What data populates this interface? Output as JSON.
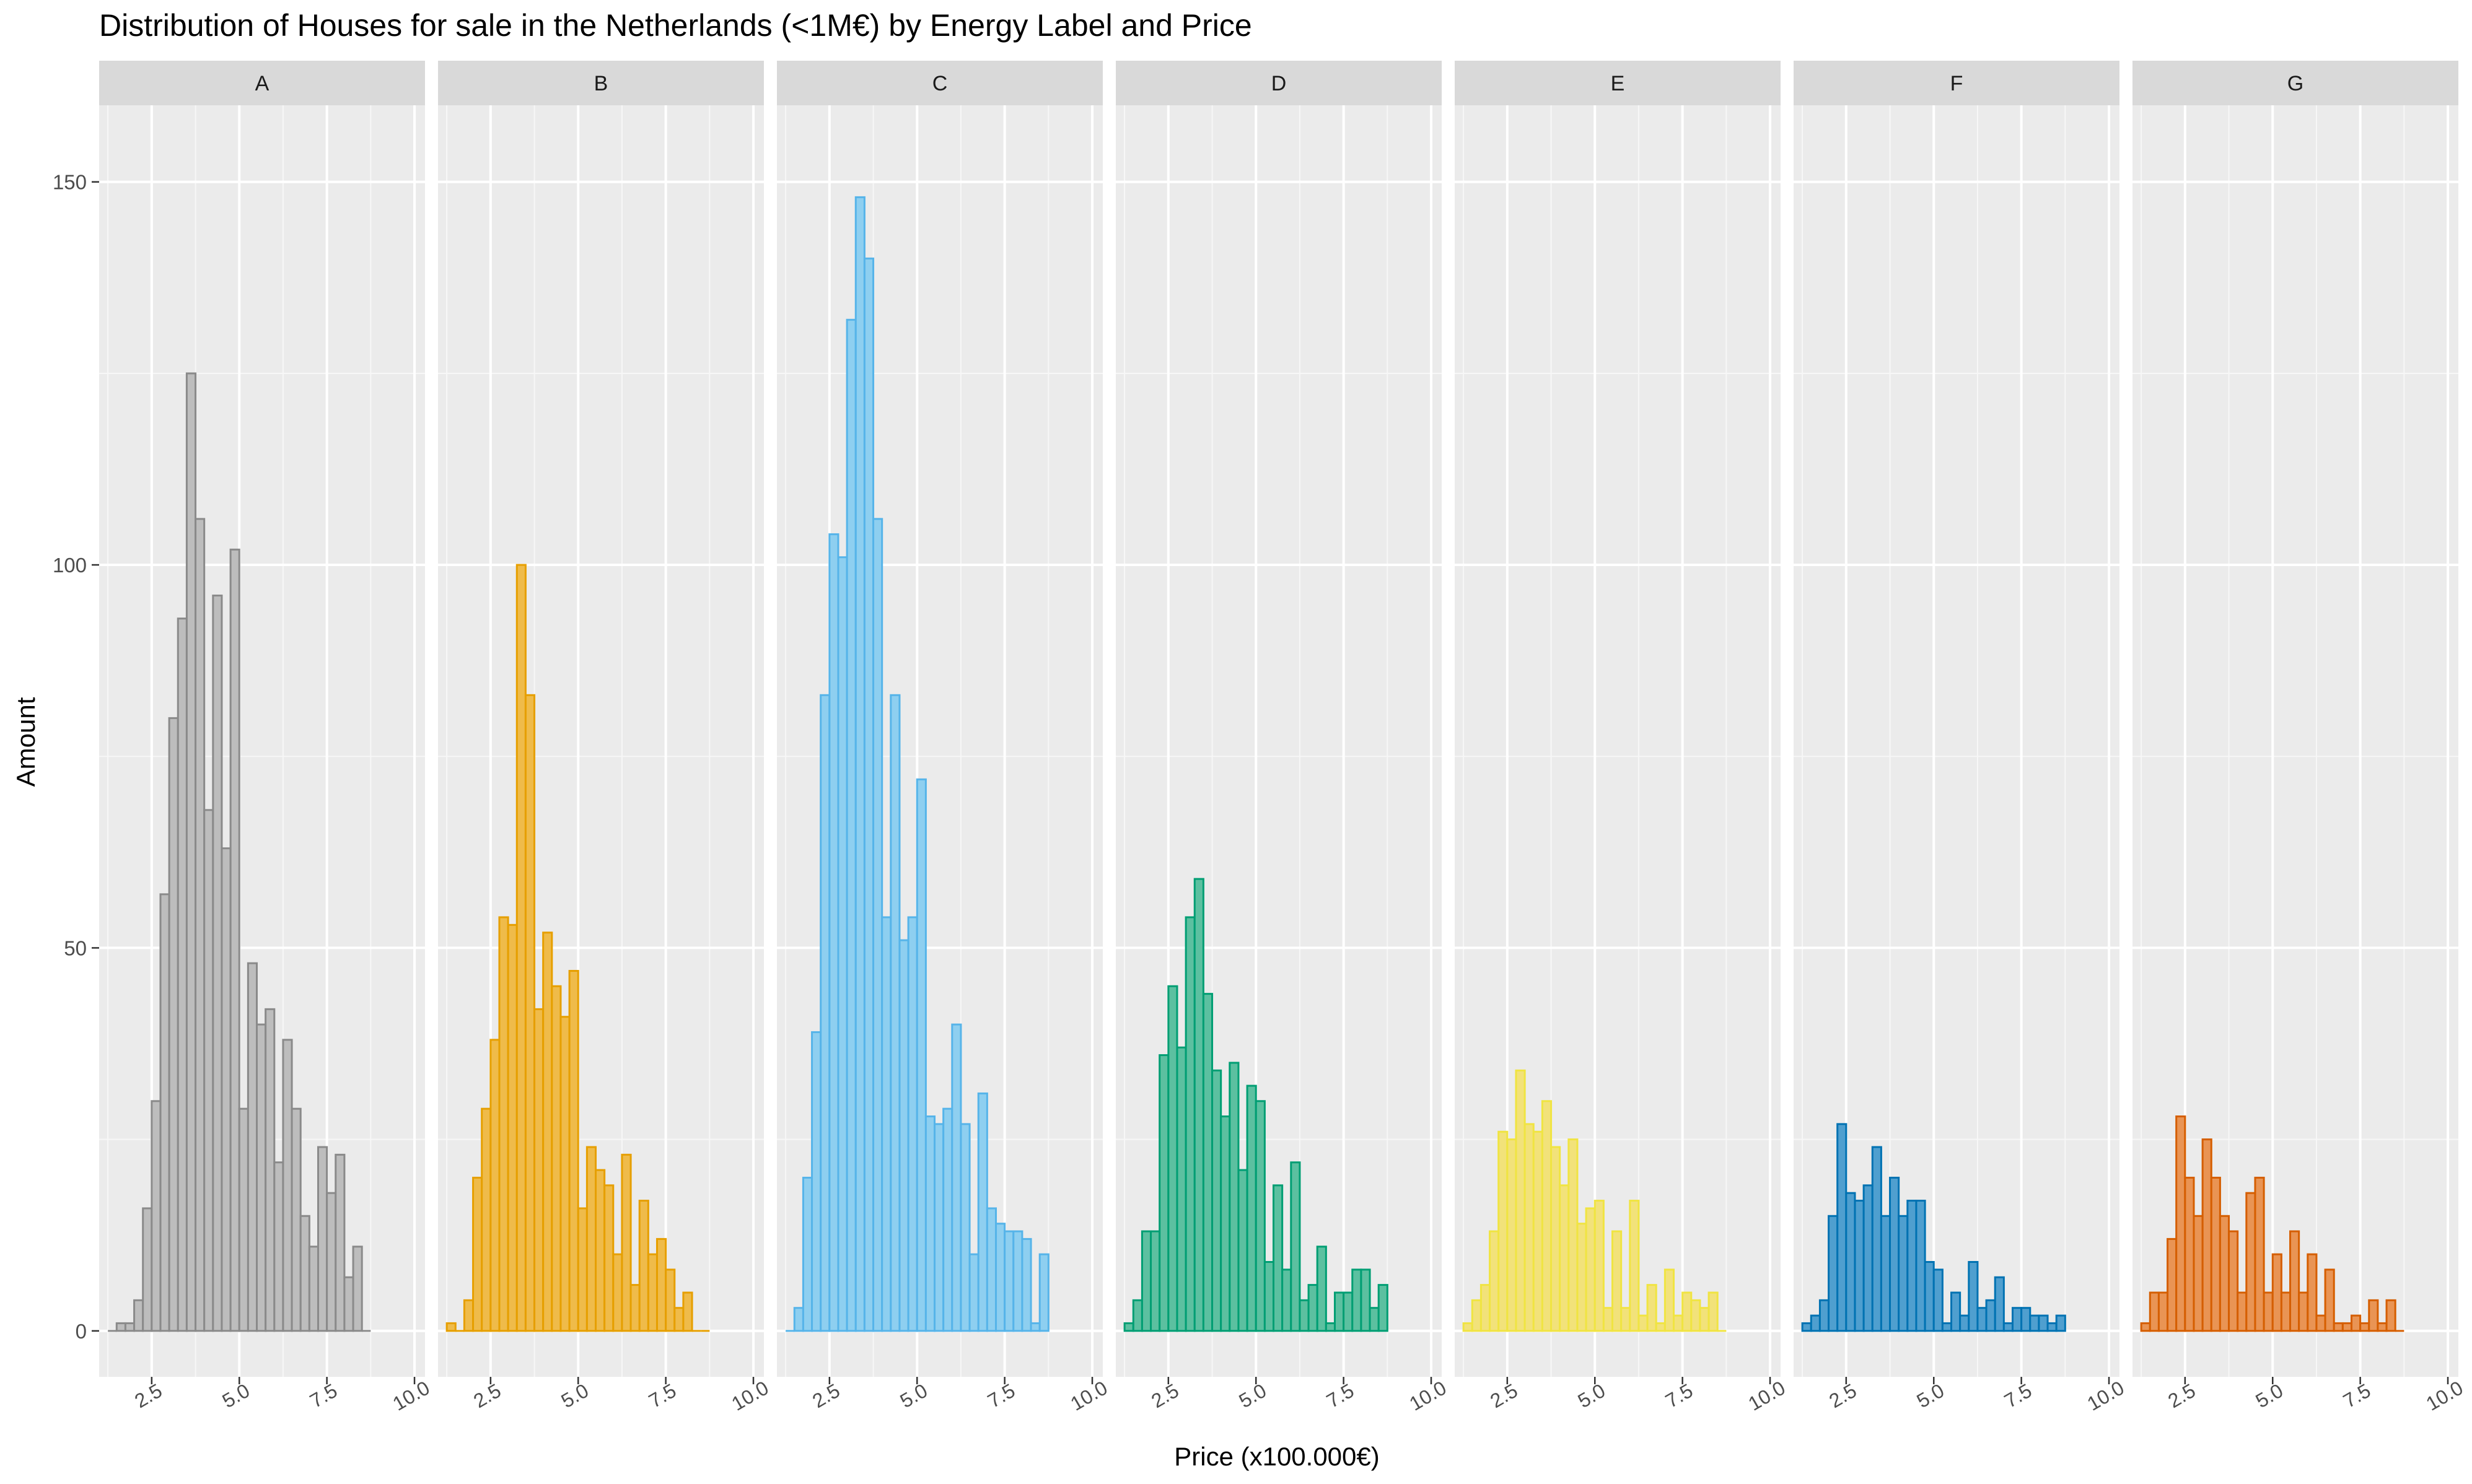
{
  "chart_data": {
    "type": "bar",
    "title": "Distribution of Houses for sale in the Netherlands (<1M€) by Energy Label and Price",
    "xlabel": "Price (x100.000€)",
    "ylabel": "Amount",
    "xlim": [
      1.0,
      10.3
    ],
    "ylim": [
      -6,
      160
    ],
    "x_ticks": [
      "2.5",
      "5.0",
      "7.5",
      "10.0"
    ],
    "x_tick_values": [
      2.5,
      5.0,
      7.5,
      10.0
    ],
    "y_ticks": [
      "0",
      "50",
      "100",
      "150"
    ],
    "y_tick_values": [
      0,
      50,
      100,
      150
    ],
    "grid": true,
    "bin_width": 0.25,
    "bin_start": 1.25,
    "series": [
      {
        "name": "A",
        "fill": "#bdbdbd",
        "stroke": "#8a8a8a",
        "values": [
          0,
          1,
          1,
          4,
          16,
          30,
          57,
          80,
          93,
          125,
          106,
          68,
          96,
          63,
          102,
          29,
          48,
          40,
          42,
          22,
          38,
          29,
          15,
          11,
          24,
          18,
          23,
          7,
          11,
          0
        ]
      },
      {
        "name": "B",
        "fill": "#efbb4a",
        "stroke": "#e69f00",
        "values": [
          1,
          0,
          4,
          20,
          29,
          38,
          54,
          53,
          100,
          83,
          42,
          52,
          45,
          41,
          47,
          16,
          24,
          21,
          19,
          10,
          23,
          6,
          17,
          10,
          12,
          8,
          3,
          5,
          0,
          0
        ]
      },
      {
        "name": "C",
        "fill": "#8ecff0",
        "stroke": "#56b4e9",
        "values": [
          0,
          3,
          20,
          39,
          83,
          104,
          101,
          132,
          148,
          140,
          106,
          54,
          83,
          51,
          54,
          72,
          28,
          27,
          29,
          40,
          27,
          10,
          31,
          16,
          14,
          13,
          13,
          12,
          1,
          10
        ]
      },
      {
        "name": "D",
        "fill": "#5cc0a0",
        "stroke": "#009e73",
        "values": [
          1,
          4,
          13,
          13,
          36,
          45,
          37,
          54,
          59,
          44,
          34,
          28,
          35,
          21,
          32,
          30,
          9,
          19,
          8,
          22,
          4,
          6,
          11,
          1,
          5,
          5,
          8,
          8,
          3,
          6
        ]
      },
      {
        "name": "E",
        "fill": "#f2e27a",
        "stroke": "#f0e442",
        "values": [
          1,
          4,
          6,
          13,
          26,
          25,
          34,
          27,
          26,
          30,
          24,
          19,
          25,
          14,
          16,
          17,
          3,
          13,
          3,
          17,
          2,
          6,
          1,
          8,
          2,
          5,
          4,
          3,
          5,
          0
        ]
      },
      {
        "name": "F",
        "fill": "#4f9fcf",
        "stroke": "#0072b2",
        "values": [
          1,
          2,
          4,
          15,
          27,
          18,
          17,
          19,
          24,
          15,
          20,
          15,
          17,
          17,
          9,
          8,
          1,
          5,
          2,
          9,
          3,
          4,
          7,
          1,
          3,
          3,
          2,
          2,
          1,
          2
        ]
      },
      {
        "name": "G",
        "fill": "#e99454",
        "stroke": "#d55e00",
        "values": [
          1,
          5,
          5,
          12,
          28,
          20,
          15,
          25,
          20,
          15,
          13,
          5,
          18,
          20,
          5,
          10,
          5,
          13,
          5,
          10,
          2,
          8,
          1,
          1,
          2,
          1,
          4,
          1,
          4,
          0
        ]
      }
    ]
  }
}
